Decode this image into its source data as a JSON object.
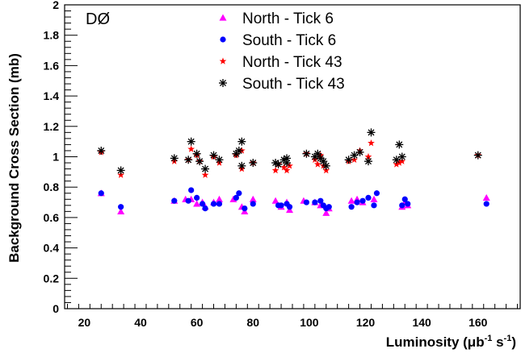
{
  "chart_data": {
    "type": "scatter",
    "experiment_label": "DØ",
    "xlabel": {
      "base": "Luminosity (μb",
      "exp1": "-1",
      "mid": " s",
      "exp2": "-1",
      "end": ")"
    },
    "ylabel": "Background Cross Section (mb)",
    "xlim": [
      13,
      175
    ],
    "ylim": [
      0,
      2
    ],
    "x_major_ticks": [
      20,
      40,
      60,
      80,
      100,
      120,
      140,
      160
    ],
    "y_major_ticks": [
      0,
      0.2,
      0.4,
      0.6,
      0.8,
      1,
      1.2,
      1.4,
      1.6,
      1.8,
      2
    ],
    "y_tick_labels": [
      "0",
      "0.2",
      "0.4",
      "0.6",
      "0.8",
      "1",
      "1.2",
      "1.4",
      "1.6",
      "1.8",
      "2"
    ],
    "grid": false,
    "legend_position": "top-center",
    "series": [
      {
        "name": "North - Tick 6",
        "marker": "triangle",
        "color": "#ff00ff",
        "points": [
          [
            26,
            0.76
          ],
          [
            33,
            0.64
          ],
          [
            52,
            0.71
          ],
          [
            56,
            0.72
          ],
          [
            58,
            0.72
          ],
          [
            60,
            0.69
          ],
          [
            62,
            0.7
          ],
          [
            63,
            0.67
          ],
          [
            66,
            0.7
          ],
          [
            68,
            0.72
          ],
          [
            73,
            0.72
          ],
          [
            76,
            0.67
          ],
          [
            77,
            0.64
          ],
          [
            80,
            0.72
          ],
          [
            88,
            0.71
          ],
          [
            90,
            0.67
          ],
          [
            92,
            0.7
          ],
          [
            93,
            0.65
          ],
          [
            98,
            0.71
          ],
          [
            102,
            0.7
          ],
          [
            104,
            0.68
          ],
          [
            106,
            0.63
          ],
          [
            107,
            0.66
          ],
          [
            115,
            0.71
          ],
          [
            117,
            0.72
          ],
          [
            119,
            0.7
          ],
          [
            123,
            0.72
          ],
          [
            133,
            0.67
          ],
          [
            134,
            0.7
          ],
          [
            135,
            0.68
          ],
          [
            163,
            0.73
          ]
        ]
      },
      {
        "name": "South - Tick 6",
        "marker": "circle",
        "color": "#0000ff",
        "points": [
          [
            26,
            0.76
          ],
          [
            33,
            0.67
          ],
          [
            52,
            0.71
          ],
          [
            57,
            0.71
          ],
          [
            58,
            0.78
          ],
          [
            60,
            0.73
          ],
          [
            62,
            0.69
          ],
          [
            63,
            0.66
          ],
          [
            66,
            0.69
          ],
          [
            68,
            0.69
          ],
          [
            74,
            0.73
          ],
          [
            75,
            0.76
          ],
          [
            77,
            0.66
          ],
          [
            80,
            0.69
          ],
          [
            89,
            0.68
          ],
          [
            90,
            0.68
          ],
          [
            92,
            0.69
          ],
          [
            93,
            0.67
          ],
          [
            99,
            0.7
          ],
          [
            102,
            0.7
          ],
          [
            104,
            0.71
          ],
          [
            105,
            0.68
          ],
          [
            106,
            0.66
          ],
          [
            107,
            0.67
          ],
          [
            115,
            0.67
          ],
          [
            117,
            0.7
          ],
          [
            119,
            0.71
          ],
          [
            121,
            0.73
          ],
          [
            123,
            0.68
          ],
          [
            124,
            0.76
          ],
          [
            133,
            0.68
          ],
          [
            134,
            0.72
          ],
          [
            135,
            0.69
          ],
          [
            163,
            0.69
          ]
        ]
      },
      {
        "name": "North - Tick 43",
        "marker": "star",
        "color": "#ff0000",
        "points": [
          [
            26,
            1.03
          ],
          [
            33,
            0.88
          ],
          [
            52,
            0.97
          ],
          [
            57,
            0.98
          ],
          [
            58,
            1.05
          ],
          [
            60,
            1.01
          ],
          [
            61,
            0.97
          ],
          [
            63,
            0.88
          ],
          [
            66,
            1.0
          ],
          [
            68,
            0.96
          ],
          [
            74,
            1.01
          ],
          [
            76,
            1.04
          ],
          [
            76,
            0.92
          ],
          [
            80,
            0.96
          ],
          [
            88,
            0.91
          ],
          [
            89,
            0.95
          ],
          [
            91,
            0.93
          ],
          [
            92,
            0.91
          ],
          [
            93,
            0.94
          ],
          [
            99,
            1.02
          ],
          [
            102,
            0.98
          ],
          [
            103,
            0.95
          ],
          [
            104,
            1.01
          ],
          [
            105,
            0.94
          ],
          [
            106,
            0.91
          ],
          [
            114,
            0.97
          ],
          [
            116,
            0.98
          ],
          [
            118,
            1.04
          ],
          [
            121,
            1.0
          ],
          [
            122,
            1.09
          ],
          [
            131,
            0.95
          ],
          [
            132,
            0.96
          ],
          [
            133,
            0.97
          ],
          [
            160,
            1.01
          ]
        ]
      },
      {
        "name": "South - Tick 43",
        "marker": "asterisk",
        "color": "#000000",
        "points": [
          [
            26,
            1.04
          ],
          [
            33,
            0.91
          ],
          [
            52,
            0.99
          ],
          [
            57,
            0.98
          ],
          [
            58,
            1.1
          ],
          [
            60,
            1.02
          ],
          [
            61,
            0.97
          ],
          [
            63,
            0.92
          ],
          [
            66,
            1.01
          ],
          [
            68,
            0.98
          ],
          [
            74,
            1.02
          ],
          [
            75,
            1.04
          ],
          [
            76,
            1.1
          ],
          [
            76,
            0.94
          ],
          [
            80,
            0.96
          ],
          [
            88,
            0.96
          ],
          [
            89,
            0.95
          ],
          [
            91,
            0.98
          ],
          [
            92,
            0.96
          ],
          [
            92,
            0.99
          ],
          [
            99,
            1.02
          ],
          [
            102,
            1.0
          ],
          [
            103,
            1.02
          ],
          [
            104,
            0.99
          ],
          [
            105,
            0.97
          ],
          [
            106,
            0.94
          ],
          [
            114,
            0.98
          ],
          [
            116,
            1.01
          ],
          [
            118,
            1.03
          ],
          [
            121,
            0.97
          ],
          [
            122,
            1.16
          ],
          [
            131,
            0.98
          ],
          [
            132,
            1.08
          ],
          [
            133,
            1.0
          ],
          [
            160,
            1.01
          ]
        ]
      }
    ]
  }
}
